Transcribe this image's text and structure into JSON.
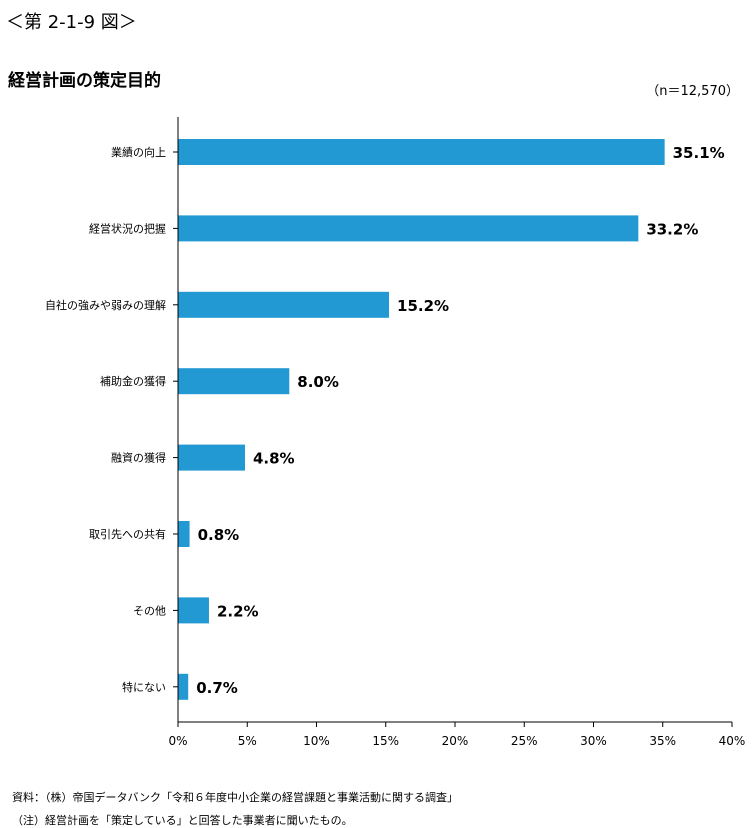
{
  "figure_label": "＜第 2-1-9 図＞",
  "sample_note": "（n＝12,570）",
  "footer": {
    "source": "資料：（株）帝国データバンク「令和６年度中小企業の経営課題と事業活動に関する調査」",
    "note": "（注）経営計画を「策定している」と回答した事業者に聞いたもの。"
  },
  "colors": {
    "bar": "#2299d2",
    "axis": "#000000"
  },
  "chart_data": {
    "type": "bar",
    "orientation": "horizontal",
    "title": "経営計画の策定目的",
    "categories": [
      "業績の向上",
      "経営状況の把握",
      "自社の強みや弱みの理解",
      "補助金の獲得",
      "融資の獲得",
      "取引先への共有",
      "その他",
      "特にない"
    ],
    "values": [
      35.1,
      33.2,
      15.2,
      8.0,
      4.8,
      0.8,
      2.2,
      0.7
    ],
    "value_labels": [
      "35.1%",
      "33.2%",
      "15.2%",
      "8.0%",
      "4.8%",
      "0.8%",
      "2.2%",
      "0.7%"
    ],
    "xlim": [
      0,
      40
    ],
    "xticks": [
      0,
      5,
      10,
      15,
      20,
      25,
      30,
      35,
      40
    ],
    "xtick_labels": [
      "0%",
      "5%",
      "10%",
      "15%",
      "20%",
      "25%",
      "30%",
      "35%",
      "40%"
    ],
    "xlabel": "",
    "ylabel": "",
    "grid": false,
    "legend": "none"
  }
}
